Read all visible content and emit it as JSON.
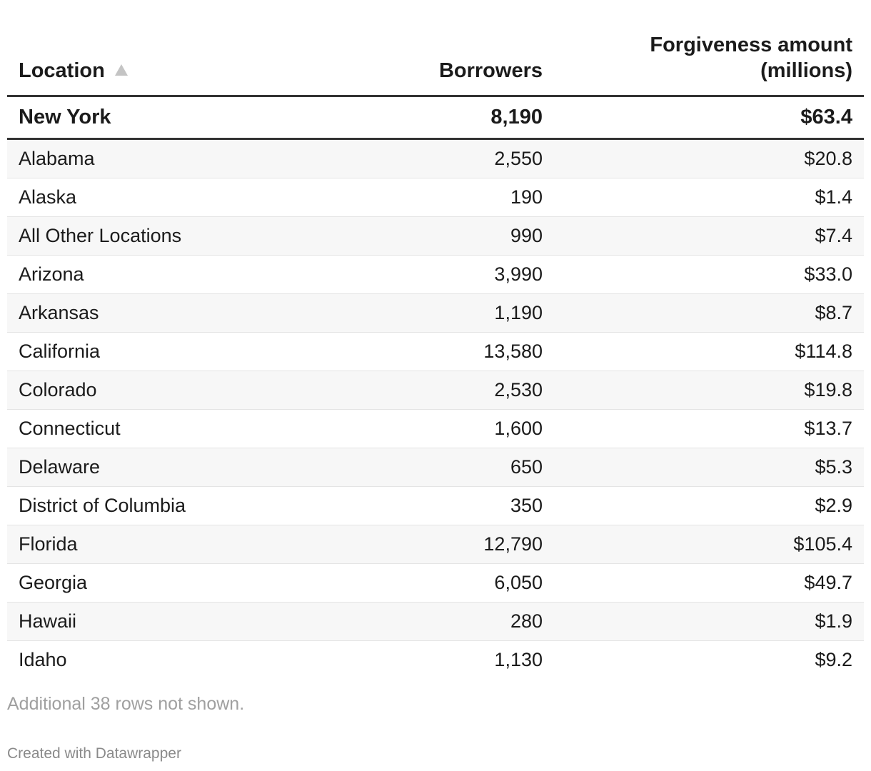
{
  "chart_data": {
    "type": "table",
    "columns": [
      "Location",
      "Borrowers",
      "Forgiveness amount\n(millions)"
    ],
    "sort": {
      "column": "Location",
      "direction": "ascending"
    },
    "highlighted_row": {
      "location": "New York",
      "borrowers": "8,190",
      "amount": "$63.4"
    },
    "rows": [
      {
        "location": "Alabama",
        "borrowers": "2,550",
        "amount": "$20.8"
      },
      {
        "location": "Alaska",
        "borrowers": "190",
        "amount": "$1.4"
      },
      {
        "location": "All Other Locations",
        "borrowers": "990",
        "amount": "$7.4"
      },
      {
        "location": "Arizona",
        "borrowers": "3,990",
        "amount": "$33.0"
      },
      {
        "location": "Arkansas",
        "borrowers": "1,190",
        "amount": "$8.7"
      },
      {
        "location": "California",
        "borrowers": "13,580",
        "amount": "$114.8"
      },
      {
        "location": "Colorado",
        "borrowers": "2,530",
        "amount": "$19.8"
      },
      {
        "location": "Connecticut",
        "borrowers": "1,600",
        "amount": "$13.7"
      },
      {
        "location": "Delaware",
        "borrowers": "650",
        "amount": "$5.3"
      },
      {
        "location": "District of Columbia",
        "borrowers": "350",
        "amount": "$2.9"
      },
      {
        "location": "Florida",
        "borrowers": "12,790",
        "amount": "$105.4"
      },
      {
        "location": "Georgia",
        "borrowers": "6,050",
        "amount": "$49.7"
      },
      {
        "location": "Hawaii",
        "borrowers": "280",
        "amount": "$1.9"
      },
      {
        "location": "Idaho",
        "borrowers": "1,130",
        "amount": "$9.2"
      }
    ],
    "note": "Additional 38 rows not shown.",
    "credit": "Created with Datawrapper"
  },
  "colors": {
    "text": "#1b1b1b",
    "stripe": "#f7f7f7",
    "rule": "#333333",
    "muted": "#a0a0a0"
  }
}
